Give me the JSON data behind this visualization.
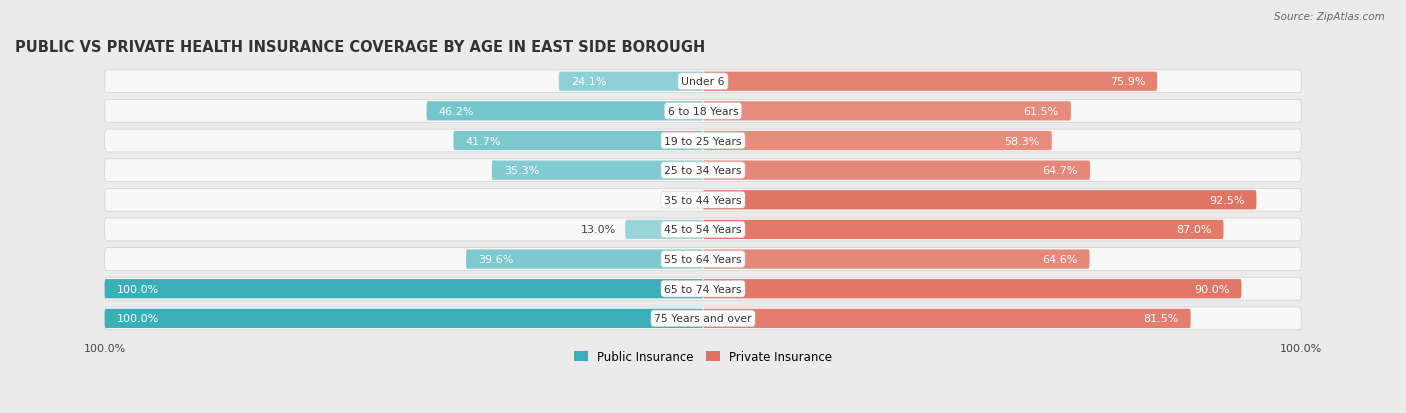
{
  "title": "PUBLIC VS PRIVATE HEALTH INSURANCE COVERAGE BY AGE IN EAST SIDE BOROUGH",
  "source": "Source: ZipAtlas.com",
  "categories": [
    "Under 6",
    "6 to 18 Years",
    "19 to 25 Years",
    "25 to 34 Years",
    "35 to 44 Years",
    "45 to 54 Years",
    "55 to 64 Years",
    "65 to 74 Years",
    "75 Years and over"
  ],
  "public_values": [
    24.1,
    46.2,
    41.7,
    35.3,
    0.0,
    13.0,
    39.6,
    100.0,
    100.0
  ],
  "private_values": [
    75.9,
    61.5,
    58.3,
    64.7,
    92.5,
    87.0,
    64.6,
    90.0,
    81.5
  ],
  "public_color_full": "#3AAFB8",
  "public_color_light": "#A8DADE",
  "private_color_full": "#E07060",
  "private_color_light": "#F2B5A8",
  "bg_color": "#ebebeb",
  "bar_bg_color": "#f8f8f8",
  "bar_height": 0.65,
  "title_fontsize": 10.5,
  "value_fontsize": 8.0,
  "category_fontsize": 7.8,
  "legend_fontsize": 8.5,
  "source_fontsize": 7.5
}
